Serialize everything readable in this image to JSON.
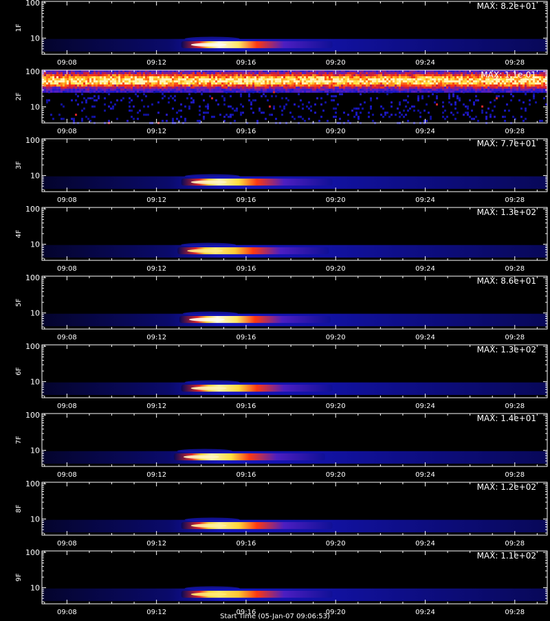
{
  "footer_label": "Start Time (05-Jan-07 09:06:53)",
  "colors": {
    "background": "#000000",
    "axis": "#ffffff",
    "colormap": [
      "#000000",
      "#0a0a6e",
      "#1818c8",
      "#5a1fbf",
      "#c81e3c",
      "#ff3a10",
      "#ff9a1e",
      "#ffe040",
      "#ffffff"
    ]
  },
  "chart_data": {
    "type": "heatmap",
    "xlabel": "Start Time (05-Jan-07 09:06:53)",
    "xlim": [
      "09:06:53",
      "09:29:27"
    ],
    "x_ticks": [
      "09:08",
      "09:12",
      "09:16",
      "09:20",
      "09:24",
      "09:28"
    ],
    "y_scale": "log",
    "ylim": [
      3.5,
      110
    ],
    "y_ticks": [
      "10",
      "100"
    ],
    "panels": [
      {
        "ylabel": "1F",
        "max_label": "MAX: 8.2e+01",
        "max_value": 82,
        "burst": true,
        "center": "09:14:20",
        "brightness": 1.0
      },
      {
        "ylabel": "2F",
        "max_label": "MAX: 1.1e-01",
        "max_value": 0.11,
        "burst": false
      },
      {
        "ylabel": "3F",
        "max_label": "MAX: 7.7e+01",
        "max_value": 77,
        "burst": true,
        "center": "09:14:20",
        "brightness": 0.97
      },
      {
        "ylabel": "4F",
        "max_label": "MAX: 1.3e+02",
        "max_value": 130,
        "burst": true,
        "center": "09:14:10",
        "brightness": 0.93
      },
      {
        "ylabel": "5F",
        "max_label": "MAX: 8.6e+01",
        "max_value": 86,
        "burst": true,
        "center": "09:14:15",
        "brightness": 1.0
      },
      {
        "ylabel": "6F",
        "max_label": "MAX: 1.3e+02",
        "max_value": 130,
        "burst": true,
        "center": "09:14:20",
        "brightness": 0.96
      },
      {
        "ylabel": "7F",
        "max_label": "MAX: 1.4e+01",
        "max_value": 14,
        "burst": true,
        "center": "09:14:00",
        "brightness": 0.97
      },
      {
        "ylabel": "8F",
        "max_label": "MAX: 1.2e+02",
        "max_value": 120,
        "burst": true,
        "center": "09:14:20",
        "brightness": 0.95
      },
      {
        "ylabel": "9F",
        "max_label": "MAX: 1.1e+02",
        "max_value": 110,
        "burst": true,
        "center": "09:14:20",
        "brightness": 0.92
      }
    ]
  }
}
